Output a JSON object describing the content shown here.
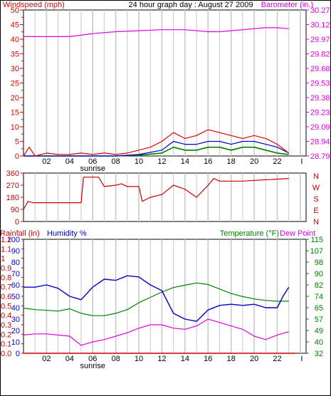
{
  "title": "24 hour graph day : August 27 2009",
  "colors": {
    "wind": "#e00000",
    "gust_blue": "#0000cc",
    "gust_green": "#008000",
    "barometer": "#e000e0",
    "direction": "#cc0000",
    "humidity": "#0000cc",
    "temperature": "#008000",
    "dewpoint": "#e000e0",
    "rainfall": "#cc0000",
    "grid": "#c8c8c8"
  },
  "x_ticks": [
    "02",
    "04",
    "06",
    "08",
    "10",
    "12",
    "14",
    "16",
    "18",
    "20",
    "22"
  ],
  "sunrise_label": "sunrise",
  "chart_data": [
    {
      "type": "line",
      "ylabel": "Windspeed (mph)",
      "y2label": "Barometer (in.)",
      "ylim": [
        0,
        50
      ],
      "y_ticks": [
        "0",
        "2.5",
        "5",
        "7.5",
        "10",
        "12.5",
        "15",
        "17.5",
        "20",
        "22.5",
        "25",
        "27.5",
        "30",
        "32.5",
        "35",
        "37.5",
        "40",
        "42.5",
        "45",
        "47.5",
        "50"
      ],
      "y2_ticks": [
        "28.79",
        "28.94",
        "29.09",
        "29.23",
        "29.38",
        "29.53",
        "29.68",
        "29.82",
        "29.97",
        "30.12",
        "30.27"
      ],
      "y2lim": [
        28.79,
        30.27
      ],
      "series": [
        {
          "key": "barometer",
          "x": [
            0,
            2,
            4,
            6,
            8,
            10,
            12,
            14,
            16,
            17,
            18,
            20,
            21,
            22,
            23
          ],
          "values": [
            30.0,
            30.0,
            30.0,
            30.03,
            30.05,
            30.06,
            30.07,
            30.07,
            30.05,
            30.05,
            30.06,
            30.08,
            30.09,
            30.09,
            30.08
          ]
        },
        {
          "key": "wind",
          "x": [
            0,
            0.5,
            1,
            2,
            3,
            4,
            5,
            6,
            7,
            8,
            9,
            10,
            11,
            12,
            13,
            14,
            15,
            16,
            17,
            18,
            19,
            20,
            21,
            22,
            23
          ],
          "values": [
            0,
            3,
            0,
            1,
            0.5,
            0.5,
            1,
            0.5,
            1,
            0.5,
            1,
            2,
            3,
            5,
            8,
            6,
            7,
            9,
            8,
            7,
            6,
            7,
            6,
            4,
            1
          ]
        },
        {
          "key": "gust_blue",
          "x": [
            0,
            2,
            4,
            6,
            8,
            10,
            12,
            13,
            14,
            15,
            16,
            17,
            18,
            19,
            20,
            21,
            22,
            23
          ],
          "values": [
            0,
            0,
            0,
            0,
            0,
            0.5,
            2,
            5,
            4,
            4,
            5,
            5,
            4,
            5,
            5,
            4,
            3,
            1
          ]
        },
        {
          "key": "gust_green",
          "x": [
            0,
            2,
            4,
            6,
            8,
            10,
            12,
            13,
            14,
            15,
            16,
            17,
            18,
            19,
            20,
            21,
            22,
            23
          ],
          "values": [
            0,
            0,
            0,
            0,
            0,
            0.3,
            1,
            3,
            2,
            2,
            3,
            3,
            2,
            3,
            3,
            2,
            1,
            0.5
          ]
        }
      ]
    },
    {
      "type": "line",
      "ylabel": "",
      "ylim": [
        0,
        360
      ],
      "y_ticks": [
        "0",
        "90",
        "180",
        "270",
        "360"
      ],
      "compass": [
        "N",
        "W",
        "S",
        "E",
        "N"
      ],
      "series": [
        {
          "key": "direction",
          "x": [
            0,
            0.4,
            0.8,
            3,
            5,
            5.2,
            6.5,
            7,
            8,
            8.5,
            9,
            10,
            10.3,
            11,
            12,
            13,
            14,
            15,
            16,
            16.5,
            17,
            19,
            21,
            23
          ],
          "values": [
            90,
            150,
            140,
            140,
            140,
            330,
            330,
            260,
            270,
            280,
            260,
            260,
            150,
            180,
            200,
            270,
            240,
            180,
            270,
            320,
            300,
            300,
            310,
            320
          ]
        }
      ]
    },
    {
      "type": "line",
      "ylabel": "Humidity %",
      "y2label": "Temperature (°F)",
      "y3label": "Dew Point",
      "rainlabel": "Rainfall (in)",
      "ylim": [
        0,
        100
      ],
      "y_ticks": [
        "0",
        "10",
        "20",
        "30",
        "40",
        "50",
        "60",
        "70",
        "80",
        "90",
        "100"
      ],
      "rain_ticks": [
        "0.0",
        "0.1",
        "0.2",
        "0.3",
        "0.4",
        "0.5",
        "0.6",
        "0.7",
        "0.8",
        "0.9",
        "1",
        "1.1",
        "1.2"
      ],
      "temp_ticks": [
        "32",
        "40",
        "49",
        "57",
        "65",
        "74",
        "82",
        "90",
        "98",
        "107",
        "115"
      ],
      "templim": [
        32,
        115
      ],
      "series": [
        {
          "key": "humidity",
          "x": [
            0,
            1,
            2,
            3,
            4,
            5,
            6,
            7,
            8,
            9,
            10,
            11,
            12,
            13,
            14,
            15,
            16,
            17,
            18,
            19,
            20,
            21,
            22,
            22.5,
            23
          ],
          "values": [
            58,
            58,
            60,
            57,
            50,
            47,
            58,
            65,
            64,
            68,
            67,
            60,
            55,
            35,
            30,
            28,
            38,
            42,
            43,
            42,
            43,
            40,
            40,
            50,
            58
          ]
        },
        {
          "key": "temperature",
          "x": [
            0,
            1,
            2,
            3,
            4,
            5,
            6,
            7,
            8,
            9,
            10,
            11,
            12,
            13,
            14,
            15,
            16,
            17,
            18,
            19,
            20,
            21,
            22,
            23
          ],
          "values": [
            64.9,
            63.8,
            63.3,
            62.7,
            64.4,
            61.1,
            59.4,
            59.4,
            61.1,
            63.8,
            68.8,
            72.7,
            76.6,
            79.9,
            81.6,
            83.2,
            82.1,
            78.8,
            75.5,
            73.3,
            71.6,
            70.5,
            69.9,
            69.9
          ]
        },
        {
          "key": "dewpoint",
          "x": [
            0,
            1,
            2,
            3,
            4,
            5,
            6,
            7,
            8,
            9,
            10,
            11,
            12,
            13,
            14,
            15,
            16,
            17,
            18,
            19,
            20,
            21,
            22,
            23
          ],
          "values": [
            16,
            17,
            17,
            16,
            15,
            7,
            10,
            12,
            15,
            18,
            22,
            25,
            25,
            22,
            21,
            24,
            30,
            27,
            24,
            21,
            15,
            12,
            16,
            19
          ]
        },
        {
          "key": "rainfall",
          "x": [
            0,
            23.5
          ],
          "values": [
            0,
            0
          ]
        }
      ]
    }
  ]
}
